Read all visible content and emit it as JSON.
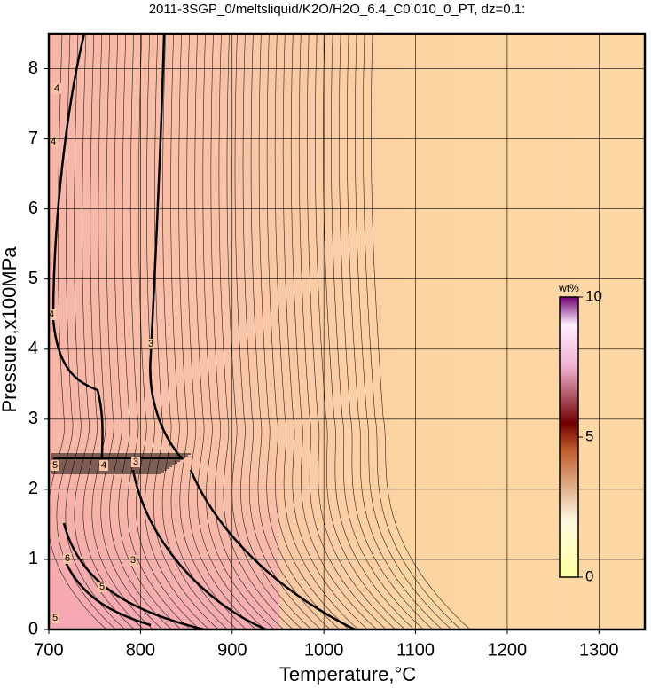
{
  "chart_data": {
    "type": "contour",
    "title": "2011-3SGP_0/meltsliquid/K2O/H2O_6.4_C0.010_0_PT, dz=0.1:",
    "x_label": "Temperature,°C",
    "y_label": "Pressure,x100MPa",
    "xlim": [
      700,
      1350
    ],
    "ylim": [
      0,
      8.5
    ],
    "xticks": [
      700,
      800,
      900,
      1000,
      1100,
      1200,
      1300
    ],
    "yticks": [
      0,
      1,
      2,
      3,
      4,
      5,
      6,
      7,
      8
    ],
    "grid": true,
    "contour_levels": [
      3,
      4,
      5,
      6
    ],
    "colorbar": {
      "label": "wt%",
      "lim": [
        0,
        10
      ],
      "ticks": [
        0,
        5,
        10
      ]
    }
  }
}
